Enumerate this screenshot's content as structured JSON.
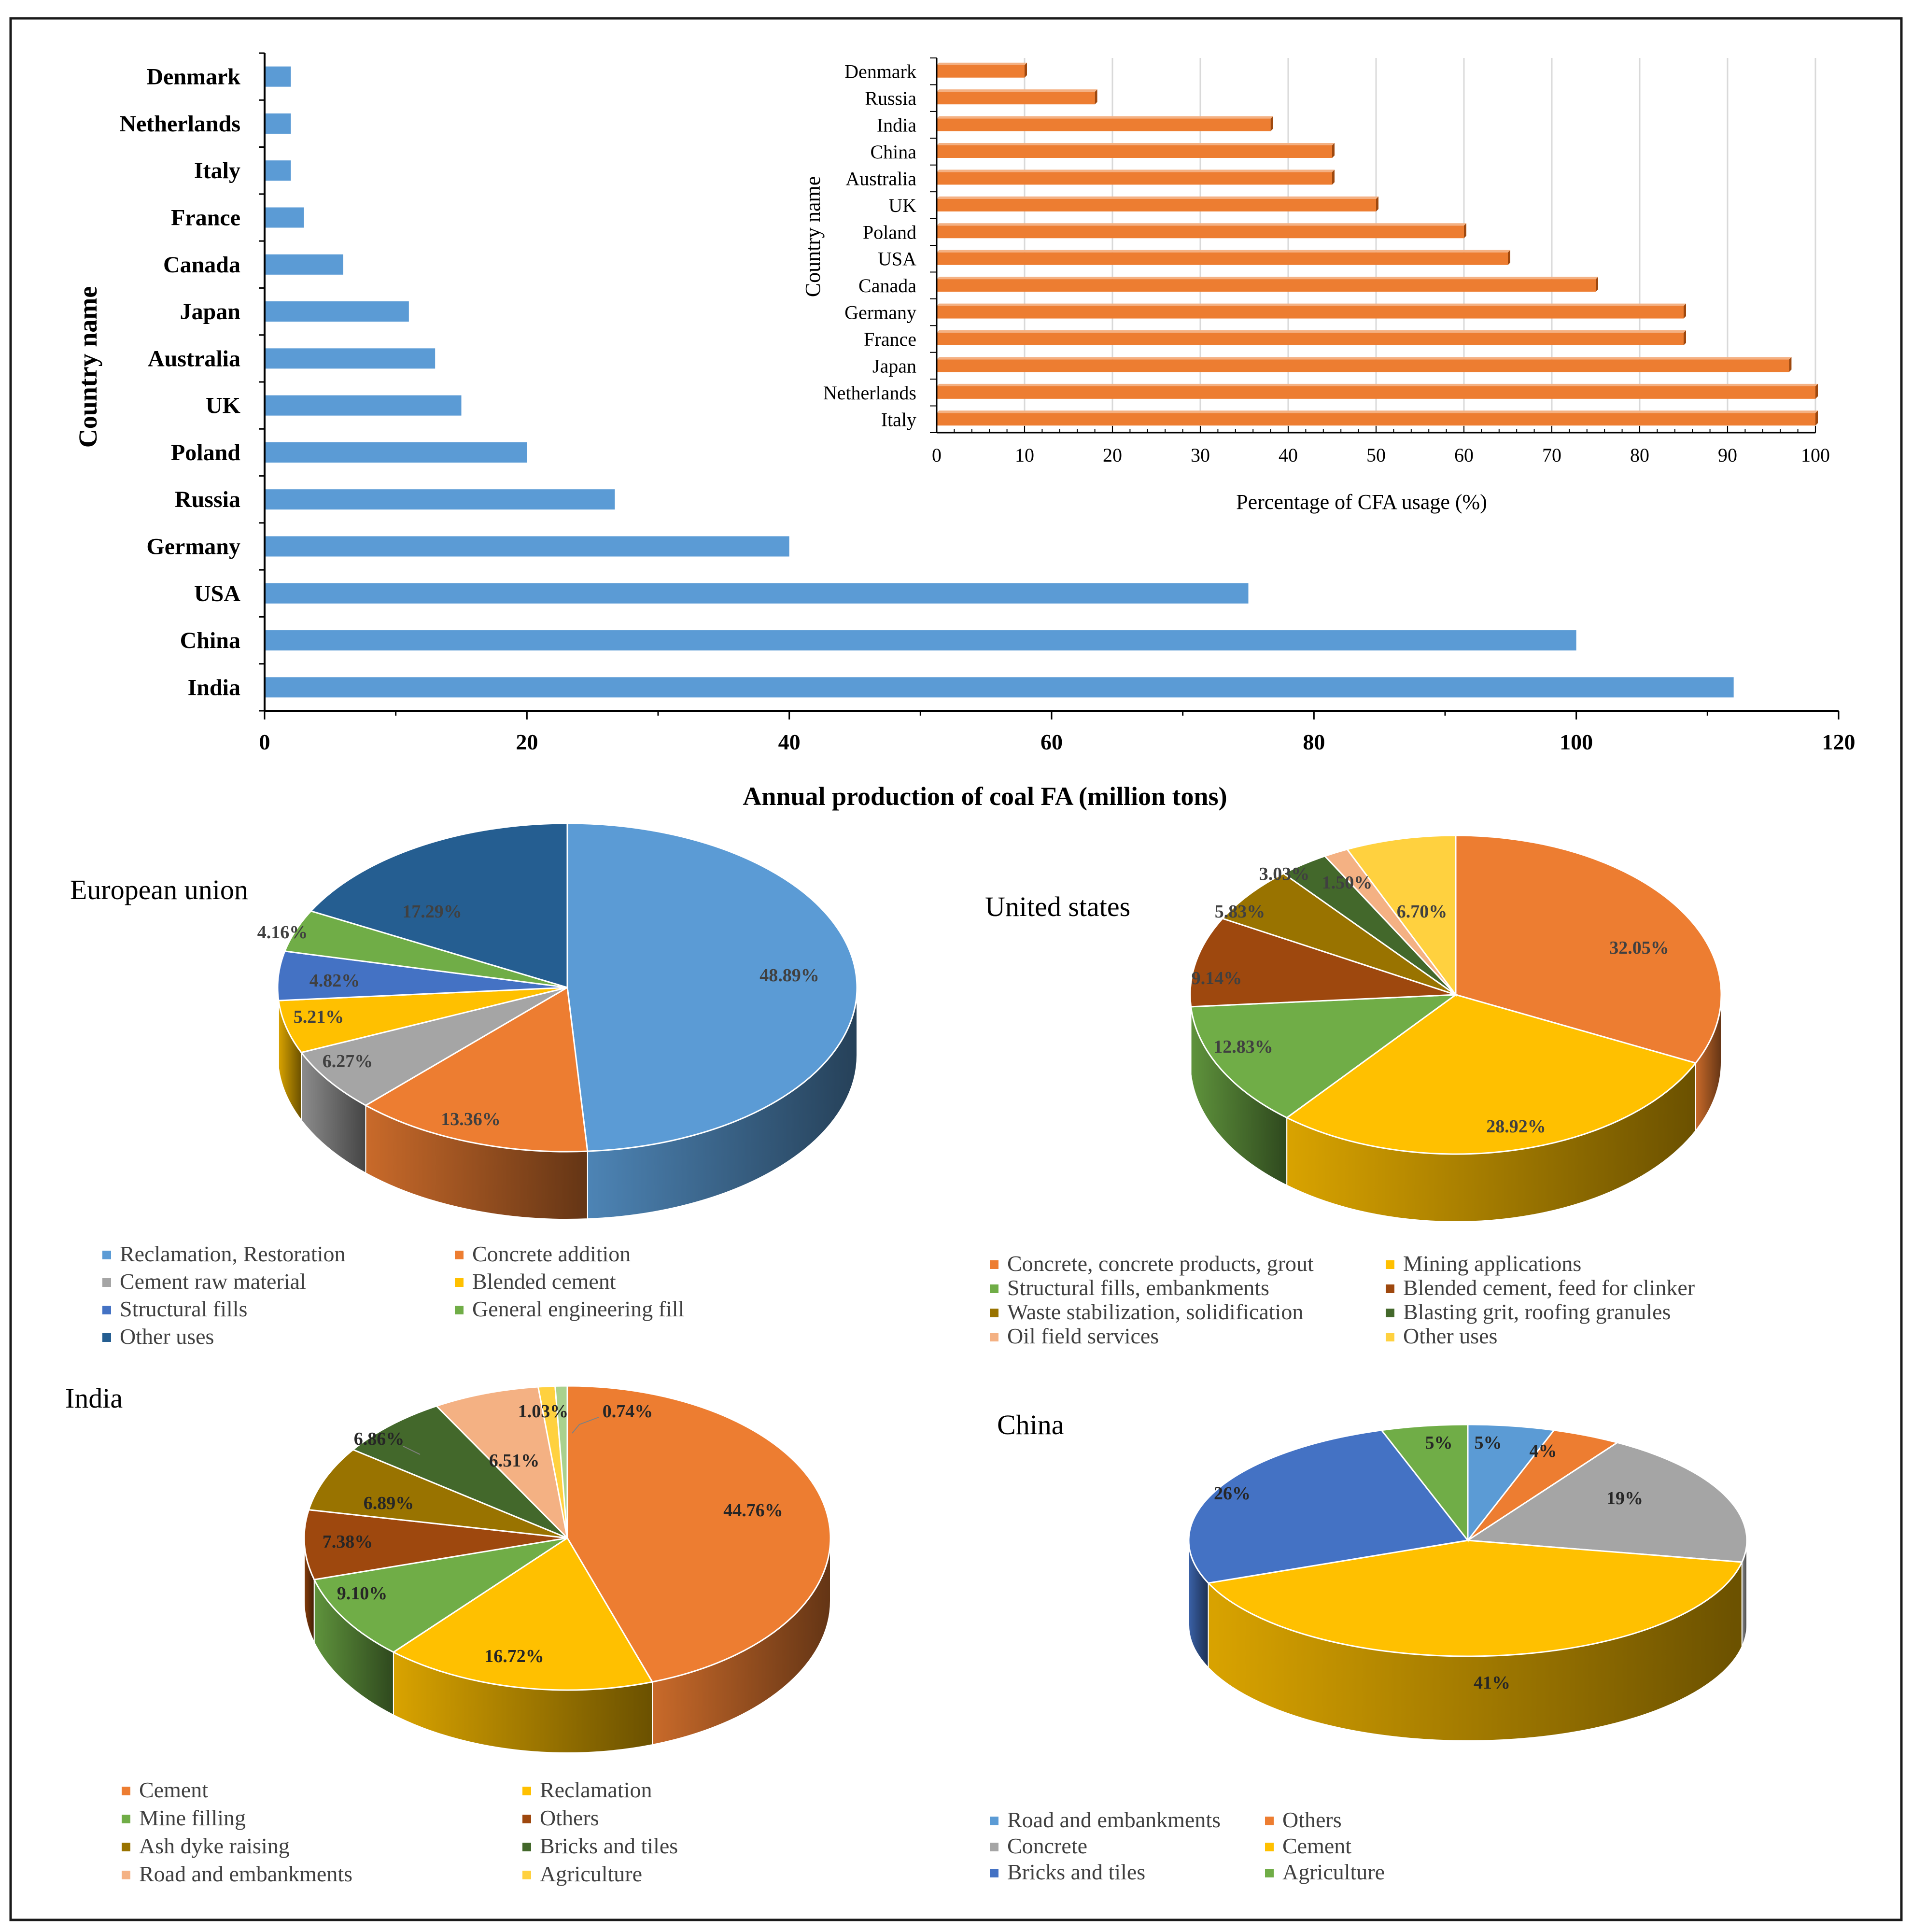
{
  "colors": {
    "frame": "#1a1a1a",
    "main_bar": "#5b9bd5",
    "inset_bar": "#ed7d31",
    "axis": "#000000",
    "grid": "#d9d9d9",
    "label_dark": "#404040"
  },
  "chart_data": [
    {
      "id": "main-bar",
      "type": "bar",
      "orientation": "horizontal",
      "title": "",
      "xlabel": "Annual  production  of coal FA (million  tons)",
      "ylabel": "Country  name",
      "categories": [
        "Denmark",
        "Netherlands",
        "Italy",
        "France",
        "Canada",
        "Japan",
        "Australia",
        "UK",
        "Poland",
        "Russia",
        "Germany",
        "USA",
        "China",
        "India"
      ],
      "values": [
        2,
        2,
        2,
        3,
        6,
        11,
        13,
        15,
        20,
        26.7,
        40,
        75,
        100,
        112
      ],
      "xlim": [
        0,
        120
      ],
      "xticks": [
        "0",
        "20",
        "40",
        "60",
        "80",
        "100",
        "120"
      ],
      "grid": false
    },
    {
      "id": "inset-bar",
      "type": "bar",
      "orientation": "horizontal",
      "title": "",
      "xlabel": "Percentage of CFA usage (%)",
      "ylabel": "Country name",
      "categories": [
        "Denmark",
        "Russia",
        "India",
        "China",
        "Australia",
        "UK",
        "Poland",
        "USA",
        "Canada",
        "Germany",
        "France",
        "Japan",
        "Netherlands",
        "Italy"
      ],
      "values": [
        10,
        18,
        38,
        45,
        45,
        50,
        60,
        65,
        75,
        85,
        85,
        97,
        100,
        100
      ],
      "xlim": [
        0,
        100
      ],
      "xticks": [
        "0",
        "10",
        "20",
        "30",
        "40",
        "50",
        "60",
        "70",
        "80",
        "90",
        "100"
      ],
      "grid": true
    },
    {
      "id": "pie-eu",
      "type": "pie",
      "title": "European union",
      "slices": [
        {
          "label": "Reclamation, Restoration",
          "value": 48.89,
          "text": "48.89%",
          "color": "#5b9bd5"
        },
        {
          "label": "Concrete addition",
          "value": 13.36,
          "text": "13.36%",
          "color": "#ed7d31"
        },
        {
          "label": "Cement raw material",
          "value": 6.27,
          "text": "6.27%",
          "color": "#a5a5a5"
        },
        {
          "label": "Blended cement",
          "value": 5.21,
          "text": "5.21%",
          "color": "#ffc000"
        },
        {
          "label": "Structural fills",
          "value": 4.82,
          "text": "4.82%",
          "color": "#4472c4"
        },
        {
          "label": "General engineering fill",
          "value": 4.16,
          "text": "4.16%",
          "color": "#70ad47"
        },
        {
          "label": "Other uses",
          "value": 17.29,
          "text": "17.29%",
          "color": "#255e91"
        }
      ]
    },
    {
      "id": "pie-us",
      "type": "pie",
      "title": "United states",
      "slices": [
        {
          "label": "Concrete, concrete products, grout",
          "value": 32.05,
          "text": "32.05%",
          "color": "#ed7d31"
        },
        {
          "label": "Mining applications",
          "value": 28.92,
          "text": "28.92%",
          "color": "#ffc000"
        },
        {
          "label": "Structural fills, embankments",
          "value": 12.83,
          "text": "12.83%",
          "color": "#70ad47"
        },
        {
          "label": "Blended cement, feed for clinker",
          "value": 9.14,
          "text": "9.14%",
          "color": "#9e480e"
        },
        {
          "label": "Waste stabilization, solidification",
          "value": 5.83,
          "text": "5.83%",
          "color": "#997300"
        },
        {
          "label": "Blasting grit, roofing granules",
          "value": 3.03,
          "text": "3.03%",
          "color": "#43682b"
        },
        {
          "label": "Oil field services",
          "value": 1.5,
          "text": "1.50%",
          "color": "#f4b183"
        },
        {
          "label": "Other uses",
          "value": 6.7,
          "text": "6.70%",
          "color": "#ffd13f"
        }
      ]
    },
    {
      "id": "pie-india",
      "type": "pie",
      "title": "India",
      "slices": [
        {
          "label": "Cement",
          "value": 44.76,
          "text": "44.76%",
          "color": "#ed7d31"
        },
        {
          "label": "Reclamation",
          "value": 16.72,
          "text": "16.72%",
          "color": "#ffc000"
        },
        {
          "label": "Mine filling",
          "value": 9.1,
          "text": "9.10%",
          "color": "#70ad47"
        },
        {
          "label": "Others",
          "value": 7.38,
          "text": "7.38%",
          "color": "#9e480e"
        },
        {
          "label": "Ash dyke raising",
          "value": 6.89,
          "text": "6.89%",
          "color": "#997300"
        },
        {
          "label": "Bricks and tiles",
          "value": 6.86,
          "text": "6.86%",
          "color": "#43682b"
        },
        {
          "label": "Road and embankments",
          "value": 6.51,
          "text": "6.51%",
          "color": "#f4b183"
        },
        {
          "label": "Agriculture",
          "value": 1.03,
          "text": "1.03%",
          "color": "#ffd13f"
        },
        {
          "label": "",
          "value": 0.74,
          "text": "0.74%",
          "color": "#a9d18e"
        }
      ]
    },
    {
      "id": "pie-china",
      "type": "pie",
      "title": "China",
      "slices": [
        {
          "label": "Road and embankments",
          "value": 5,
          "text": "5%",
          "color": "#5b9bd5"
        },
        {
          "label": "Others",
          "value": 4,
          "text": "4%",
          "color": "#ed7d31"
        },
        {
          "label": "Concrete",
          "value": 19,
          "text": "19%",
          "color": "#a5a5a5"
        },
        {
          "label": "Cement",
          "value": 41,
          "text": "41%",
          "color": "#ffc000"
        },
        {
          "label": "Bricks and tiles",
          "value": 26,
          "text": "26%",
          "color": "#4472c4"
        },
        {
          "label": "Agriculture",
          "value": 5,
          "text": "5%",
          "color": "#70ad47"
        }
      ]
    }
  ]
}
